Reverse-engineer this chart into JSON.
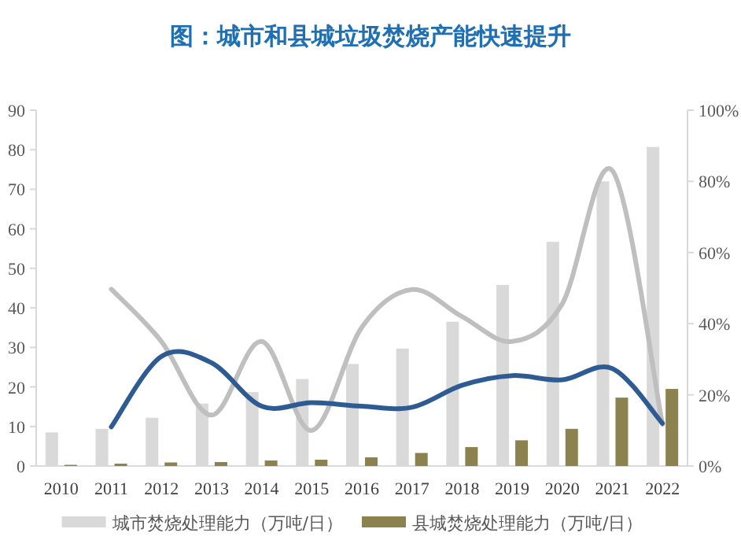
{
  "chart_data": {
    "type": "bar",
    "title": "图：城市和县城垃圾焚烧产能快速提升",
    "categories": [
      "2010",
      "2011",
      "2012",
      "2013",
      "2014",
      "2015",
      "2016",
      "2017",
      "2018",
      "2019",
      "2020",
      "2021",
      "2022"
    ],
    "series": [
      {
        "name": "城市焚烧处理能力（万吨/日）",
        "color": "#d9d9d9",
        "values": [
          8.5,
          9.4,
          12.2,
          15.8,
          18.7,
          22.0,
          25.8,
          29.7,
          36.5,
          45.8,
          56.7,
          72.0,
          80.7
        ]
      },
      {
        "name": "县城焚烧处理能力（万吨/日）",
        "color": "#8c8250",
        "values": [
          0.3,
          0.6,
          0.9,
          1.0,
          1.4,
          1.6,
          2.2,
          3.3,
          4.8,
          6.5,
          9.4,
          17.3,
          19.5
        ]
      },
      {
        "type": "line",
        "axis": "y2",
        "color": "#bfbfbf",
        "values": [
          null,
          49.7,
          35,
          14.3,
          35,
          10,
          39,
          49.6,
          42,
          35,
          45.6,
          83,
          11.7
        ]
      },
      {
        "type": "line",
        "axis": "y2",
        "color": "#2e5b92",
        "values": [
          null,
          11,
          30.8,
          29,
          16.8,
          17.8,
          16.8,
          16.5,
          22.7,
          25.4,
          24.2,
          27.4,
          12
        ]
      }
    ],
    "ylim": [
      0,
      90
    ],
    "yticks": [
      0,
      10,
      20,
      30,
      40,
      50,
      60,
      70,
      80,
      90
    ],
    "y2lim": [
      0,
      100
    ],
    "y2ticks": [
      {
        "value": 0,
        "label": "0%"
      },
      {
        "value": 20,
        "label": "20%"
      },
      {
        "value": 40,
        "label": "40%"
      },
      {
        "value": 60,
        "label": "60%"
      },
      {
        "value": 80,
        "label": "80%"
      },
      {
        "value": 100,
        "label": "100%"
      }
    ],
    "legend": "bottom"
  }
}
